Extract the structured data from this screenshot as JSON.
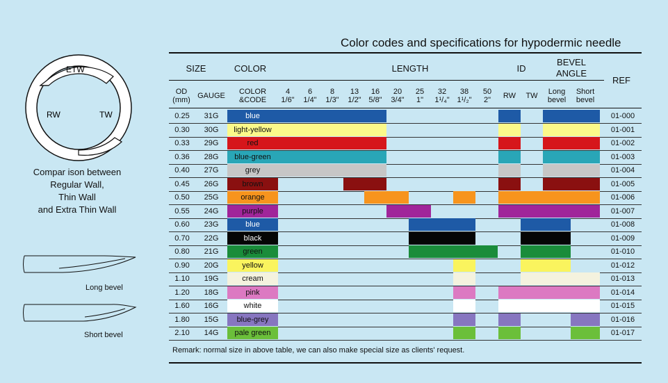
{
  "title": "Color codes and specifications for hypodermic needle",
  "headers": {
    "size": "SIZE",
    "color": "COLOR",
    "length": "LENGTH",
    "id": "ID",
    "bevel_angle_1": "BEVEL",
    "bevel_angle_2": "ANGLE",
    "ref": "REF",
    "od_1": "OD",
    "od_2": "(mm)",
    "gauge": "GAUGE",
    "colorcode_1": "COLOR",
    "colorcode_2": "&CODE",
    "lengths": [
      {
        "top": "4",
        "bot": "1/6\""
      },
      {
        "top": "6",
        "bot": "1/4\""
      },
      {
        "top": "8",
        "bot": "1/3\""
      },
      {
        "top": "13",
        "bot": "1/2\""
      },
      {
        "top": "16",
        "bot": "5/8\""
      },
      {
        "top": "20",
        "bot": "3/4\""
      },
      {
        "top": "25",
        "bot": "1\""
      },
      {
        "top": "32",
        "bot": "1¹/₄\""
      },
      {
        "top": "38",
        "bot": "1¹/₂\""
      },
      {
        "top": "50",
        "bot": "2\""
      }
    ],
    "rw": "RW",
    "tw": "TW",
    "long_1": "Long",
    "long_2": "bevel",
    "short_1": "Short",
    "short_2": "bevel"
  },
  "rows": [
    {
      "od": "0.25",
      "gauge": "31G",
      "code": "blue",
      "color": "#1e5aa6",
      "text": "#ffffff",
      "len": [
        0,
        1,
        2,
        3,
        4
      ],
      "rw": true,
      "tw": false,
      "long": true,
      "short": true,
      "ref": "01-000"
    },
    {
      "od": "0.30",
      "gauge": "30G",
      "code": "light-yellow",
      "color": "#fbf98a",
      "text": "#111111",
      "len": [
        0,
        1,
        2,
        3,
        4
      ],
      "rw": true,
      "tw": false,
      "long": true,
      "short": true,
      "ref": "01-001"
    },
    {
      "od": "0.33",
      "gauge": "29G",
      "code": "red",
      "color": "#d6161b",
      "text": "#111111",
      "len": [
        0,
        1,
        2,
        3,
        4
      ],
      "rw": true,
      "tw": false,
      "long": true,
      "short": true,
      "ref": "01-002"
    },
    {
      "od": "0.36",
      "gauge": "28G",
      "code": "blue-green",
      "color": "#29a6b7",
      "text": "#111111",
      "len": [
        0,
        1,
        2,
        3,
        4
      ],
      "rw": true,
      "tw": false,
      "long": true,
      "short": true,
      "ref": "01-003"
    },
    {
      "od": "0.40",
      "gauge": "27G",
      "code": "grey",
      "color": "#c6c6c6",
      "text": "#111111",
      "len": [
        0,
        1,
        2,
        3,
        4
      ],
      "rw": true,
      "tw": false,
      "long": true,
      "short": true,
      "ref": "01-004"
    },
    {
      "od": "0.45",
      "gauge": "26G",
      "code": "brown",
      "color": "#8a1010",
      "text": "#111111",
      "len": [
        3,
        4
      ],
      "rw": true,
      "tw": false,
      "long": true,
      "short": true,
      "ref": "01-005"
    },
    {
      "od": "0.50",
      "gauge": "25G",
      "code": "orange",
      "color": "#f7941d",
      "text": "#111111",
      "len": [
        4,
        5,
        8
      ],
      "rw": true,
      "tw": true,
      "long": true,
      "short": true,
      "ref": "01-006"
    },
    {
      "od": "0.55",
      "gauge": "24G",
      "code": "purple",
      "color": "#a0259a",
      "text": "#111111",
      "len": [
        5,
        6
      ],
      "rw": true,
      "tw": true,
      "long": true,
      "short": true,
      "ref": "01-007"
    },
    {
      "od": "0.60",
      "gauge": "23G",
      "code": "blue",
      "color": "#1e5aa6",
      "text": "#ffffff",
      "len": [
        6,
        7,
        8
      ],
      "rw": false,
      "tw": true,
      "long": true,
      "short": false,
      "ref": "01-008"
    },
    {
      "od": "0.70",
      "gauge": "22G",
      "code": "black",
      "color": "#050505",
      "text": "#ffffff",
      "len": [
        6,
        7,
        8
      ],
      "rw": false,
      "tw": true,
      "long": true,
      "short": false,
      "ref": "01-009"
    },
    {
      "od": "0.80",
      "gauge": "21G",
      "code": "green",
      "color": "#1a8c3a",
      "text": "#111111",
      "len": [
        6,
        7,
        8,
        9
      ],
      "rw": false,
      "tw": true,
      "long": true,
      "short": false,
      "ref": "01-010"
    },
    {
      "od": "0.90",
      "gauge": "20G",
      "code": "yellow",
      "color": "#faf45e",
      "text": "#111111",
      "len": [
        8
      ],
      "rw": false,
      "tw": true,
      "long": true,
      "short": false,
      "ref": "01-012"
    },
    {
      "od": "1.10",
      "gauge": "19G",
      "code": "cream",
      "color": "#f4f2de",
      "text": "#111111",
      "len": [
        8
      ],
      "rw": false,
      "tw": true,
      "long": true,
      "short": true,
      "ref": "01-013"
    },
    {
      "od": "1.20",
      "gauge": "18G",
      "code": "pink",
      "color": "#dc79c2",
      "text": "#111111",
      "len": [
        8
      ],
      "rw": true,
      "tw": true,
      "long": true,
      "short": true,
      "ref": "01-014"
    },
    {
      "od": "1.60",
      "gauge": "16G",
      "code": "white",
      "color": "#ffffff",
      "text": "#111111",
      "len": [
        8
      ],
      "rw": true,
      "tw": true,
      "long": true,
      "short": true,
      "ref": "01-015"
    },
    {
      "od": "1.80",
      "gauge": "15G",
      "code": "blue-grey",
      "color": "#8776c0",
      "text": "#111111",
      "len": [
        8
      ],
      "rw": true,
      "tw": false,
      "long": false,
      "short": true,
      "ref": "01-016"
    },
    {
      "od": "2.10",
      "gauge": "14G",
      "code": "pale green",
      "color": "#6bbf3a",
      "text": "#111111",
      "len": [
        8
      ],
      "rw": true,
      "tw": false,
      "long": false,
      "short": true,
      "ref": "01-017"
    }
  ],
  "remark": "Remark: normal size in above table, we can also make special size as clients' request.",
  "diagram": {
    "etw": "ETW",
    "rw": "RW",
    "tw": "TW",
    "caption_1": "Compar ison between",
    "caption_2": "Regular Wall,",
    "caption_3": "Thin Wall",
    "caption_4": "and Extra Thin Wall",
    "long_bevel": "Long  bevel",
    "short_bevel": "Short  bevel"
  }
}
